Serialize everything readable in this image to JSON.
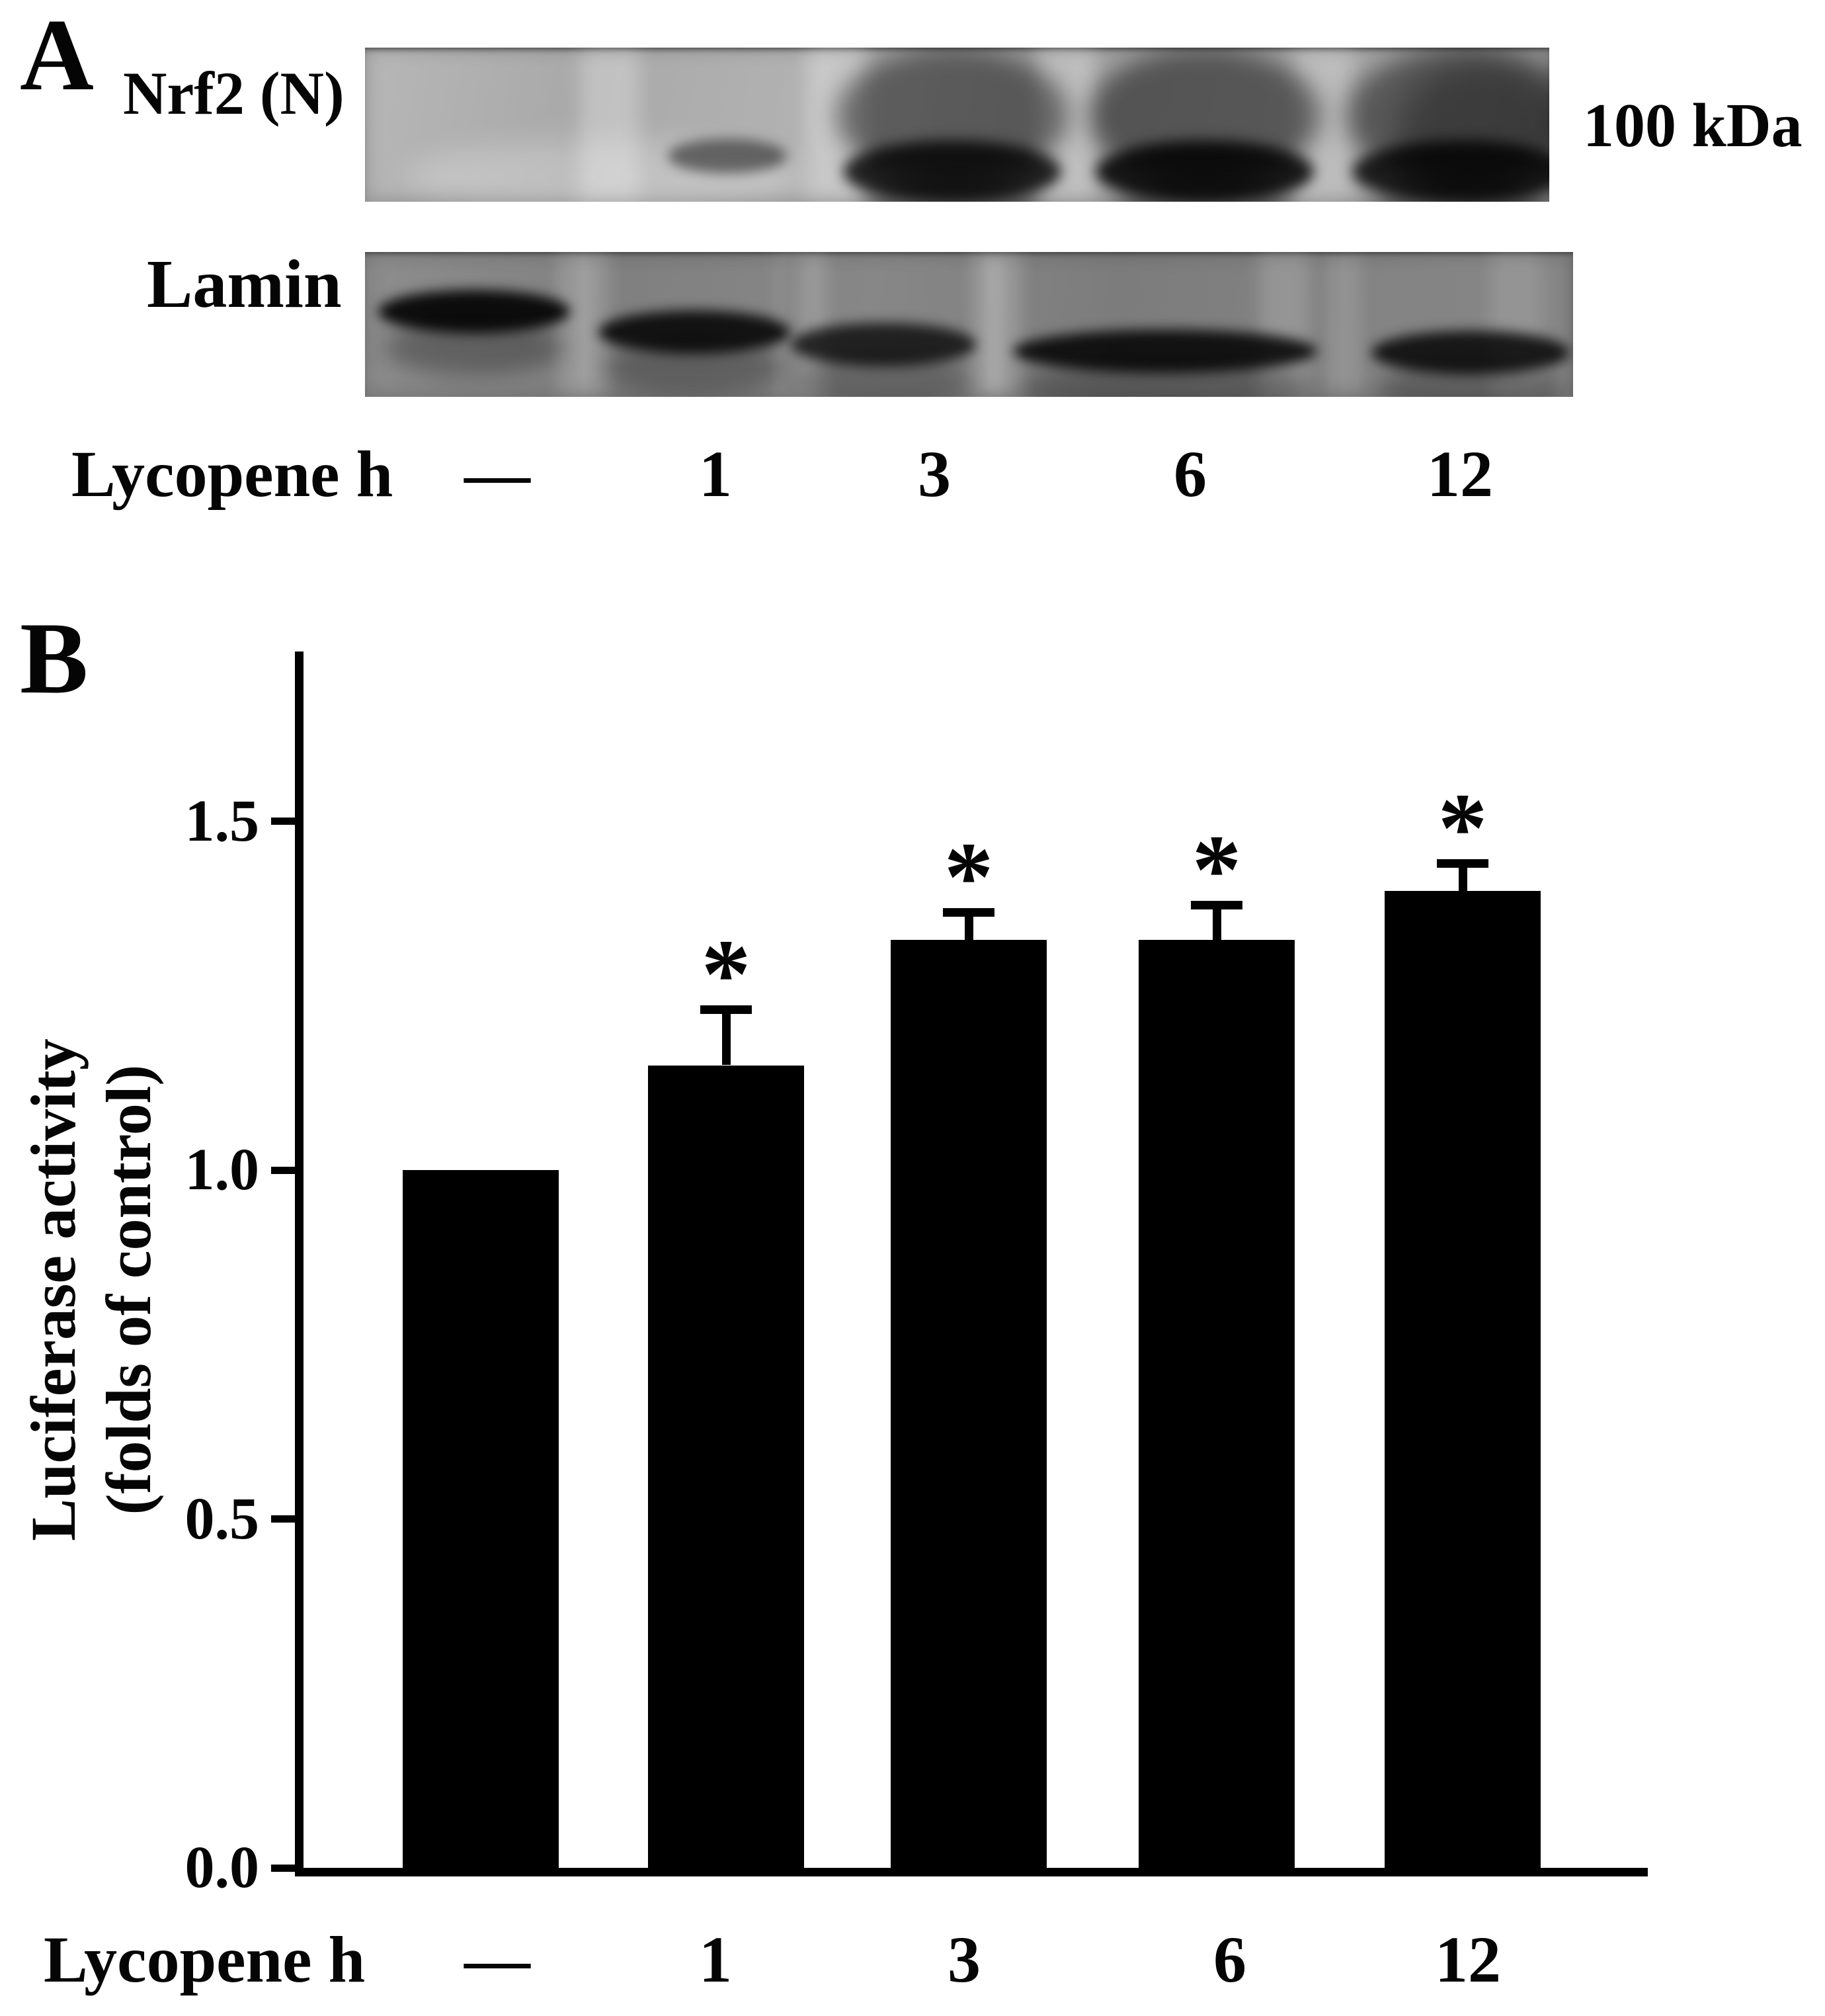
{
  "figure": {
    "panel_a": {
      "label": "A",
      "blots": [
        {
          "name": "Nrf2 (N)"
        },
        {
          "name": "Lamin"
        }
      ],
      "marker": "100 kDa",
      "lane_row": {
        "prefix": "Lycopene h",
        "labels": [
          "—",
          "1",
          "3",
          "6",
          "12"
        ]
      },
      "nrf2_band_intensity": [
        0,
        0.35,
        0.85,
        0.9,
        0.85
      ],
      "lamin_band_intensity": [
        0.9,
        0.85,
        0.75,
        0.85,
        0.82
      ]
    },
    "panel_b": {
      "label": "B",
      "ylabel_line1": "Luciferase activity",
      "ylabel_line2": "(folds of control)",
      "x_row": {
        "prefix": "Lycopene h",
        "labels": [
          "—",
          "1",
          "3",
          "6",
          "12"
        ]
      },
      "sig_symbol": "*"
    }
  },
  "chart_data": {
    "type": "bar",
    "title": "",
    "categories": [
      "—",
      "1",
      "3",
      "6",
      "12"
    ],
    "values": [
      1.0,
      1.15,
      1.33,
      1.33,
      1.4
    ],
    "errors": [
      0,
      0.08,
      0.04,
      0.05,
      0.04
    ],
    "significant": [
      false,
      true,
      true,
      true,
      true
    ],
    "xlabel": "Lycopene h",
    "ylabel": "Luciferase activity (folds of control)",
    "yticks": [
      0.0,
      0.5,
      1.0,
      1.5
    ],
    "ylim": [
      0,
      1.75
    ],
    "bar_color": "#000000",
    "error_caps": true,
    "grid": false,
    "legend": null
  }
}
